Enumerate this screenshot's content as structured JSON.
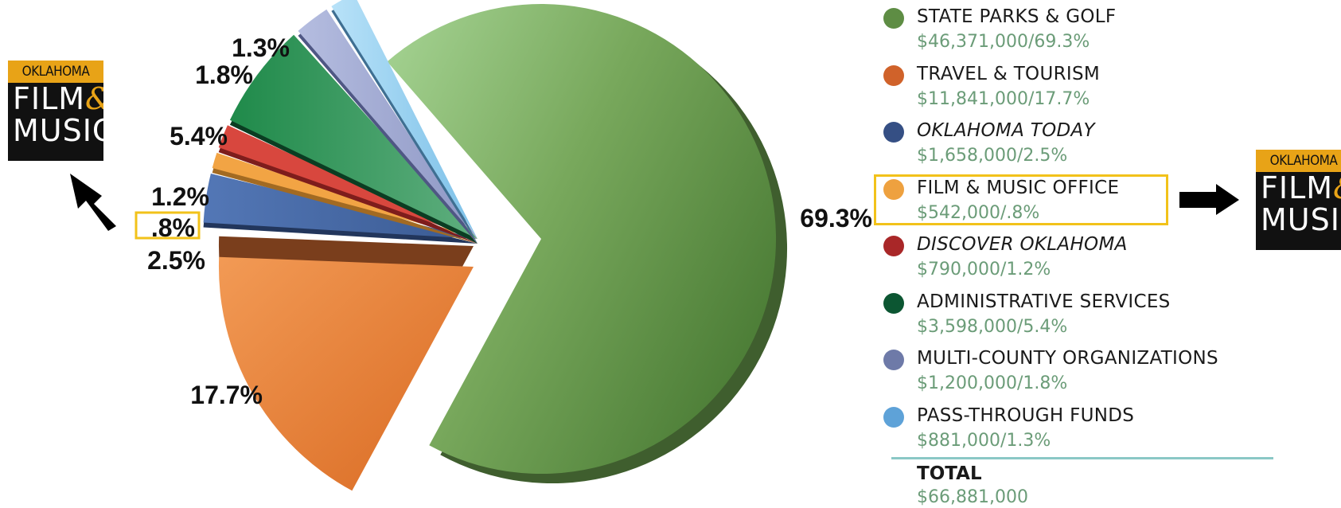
{
  "chart_data": {
    "type": "pie",
    "title": "",
    "slices": [
      {
        "label": "STATE PARKS & GOLF",
        "amount": "$46,371,000",
        "value": 69.3,
        "pct_label": "69.3%",
        "color": "#5e8d44"
      },
      {
        "label": "TRAVEL & TOURISM",
        "amount": "$11,841,000",
        "value": 17.7,
        "pct_label": "17.7%",
        "color": "#e07a30"
      },
      {
        "label": "OKLAHOMA TODAY",
        "amount": "$1,658,000",
        "value": 2.5,
        "pct_label": "2.5%",
        "color": "#3f63a1",
        "italic": true
      },
      {
        "label": "FILM & MUSIC OFFICE",
        "amount": "$542,000",
        "value": 0.8,
        "pct_label": ".8%",
        "color": "#f2a444",
        "highlighted": true
      },
      {
        "label": "DISCOVER OKLAHOMA",
        "amount": "$790,000",
        "value": 1.2,
        "pct_label": "1.2%",
        "color": "#c63a34",
        "italic": true
      },
      {
        "label": "ADMINISTRATIVE SERVICES",
        "amount": "$3,598,000",
        "value": 5.4,
        "pct_label": "5.4%",
        "color": "#14733f"
      },
      {
        "label": "MULTI-COUNTY ORGANIZATIONS",
        "amount": "$1,200,000",
        "value": 1.8,
        "pct_label": "1.8%",
        "color": "#8e97c4"
      },
      {
        "label": "PASS-THROUGH FUNDS",
        "amount": "$881,000",
        "value": 1.3,
        "pct_label": "1.3%",
        "color": "#8ecbee"
      }
    ],
    "legend_placement": "right",
    "total_label": "TOTAL",
    "total_value": "$66,881,000"
  },
  "logo": {
    "top_text": "OKLAHOMA",
    "line1": "FILM",
    "amp": "&",
    "line2": "MUSIC"
  },
  "legend_dot_colors": [
    "#5e8d44",
    "#d0622a",
    "#354f84",
    "#eea13f",
    "#a92728",
    "#0c5632",
    "#6e7aa8",
    "#5ea2d8"
  ],
  "highlight_color": "#f2c21a",
  "arrow_color": "#000000"
}
